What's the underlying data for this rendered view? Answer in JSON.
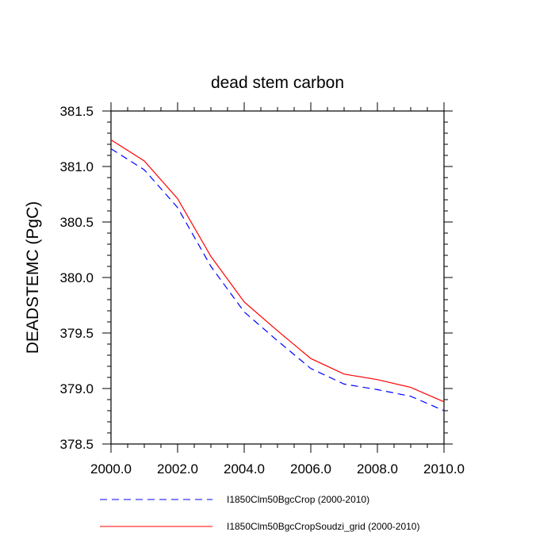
{
  "chart_data": {
    "type": "line",
    "title": "dead stem carbon",
    "xlabel": "",
    "ylabel": "DEADSTEMC  (PgC)",
    "xlim": [
      2000,
      2010
    ],
    "ylim": [
      378.5,
      381.5
    ],
    "x_ticks": [
      "2000.0",
      "2002.0",
      "2004.0",
      "2006.0",
      "2008.0",
      "2010.0"
    ],
    "y_ticks": [
      "378.5",
      "379.0",
      "379.5",
      "380.0",
      "380.5",
      "381.0",
      "381.5"
    ],
    "grid": false,
    "legend_position": "bottom",
    "x": [
      2000,
      2001,
      2002,
      2003,
      2004,
      2005,
      2006,
      2007,
      2008,
      2009,
      2010
    ],
    "series": [
      {
        "name": "I1850Clm50BgcCrop (2000-2010)",
        "color": "#0000ff",
        "dash": true,
        "values": [
          381.16,
          380.97,
          380.63,
          380.1,
          379.69,
          379.43,
          379.18,
          379.04,
          378.99,
          378.93,
          378.8
        ]
      },
      {
        "name": "I1850Clm50BgcCropSoudzi_grid (2000-2010)",
        "color": "#ff0000",
        "dash": false,
        "values": [
          381.24,
          381.05,
          380.71,
          380.19,
          379.78,
          379.52,
          379.27,
          379.13,
          379.08,
          379.01,
          378.88
        ]
      }
    ]
  }
}
